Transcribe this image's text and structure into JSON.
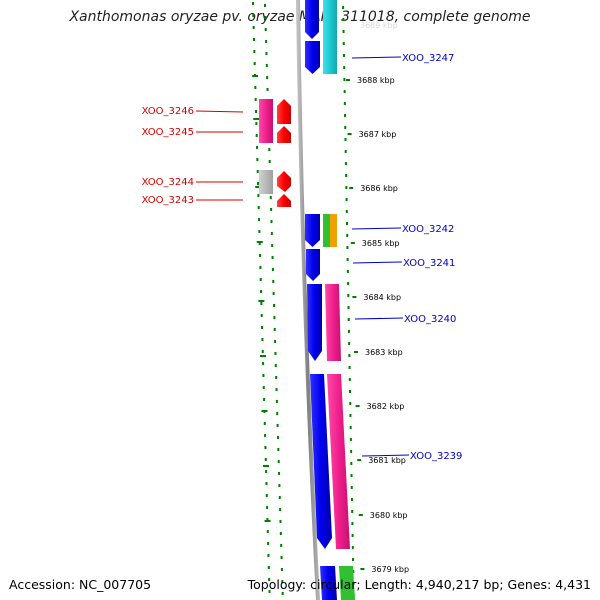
{
  "header": {
    "title": "Xanthomonas oryzae pv. oryzae MAFF 311018, complete genome"
  },
  "footer": {
    "accession": "Accession: NC_007705",
    "summary": "Topology: circular; Length: 4,940,217 bp; Genes: 4,431"
  },
  "scale": {
    "ticks": [
      {
        "label": "3688 kbp"
      },
      {
        "label": "3687 kbp"
      },
      {
        "label": "3686 kbp"
      },
      {
        "label": "3685 kbp"
      },
      {
        "label": "3684 kbp"
      },
      {
        "label": "3683 kbp"
      },
      {
        "label": "3682 kbp"
      },
      {
        "label": "3681 kbp"
      },
      {
        "label": "3680 kbp"
      },
      {
        "label": "3679 kbp"
      }
    ],
    "top_partial_label": "3689 kbp"
  },
  "genes": {
    "reverse": [
      "XOO_3246",
      "XOO_3245",
      "XOO_3244",
      "XOO_3243"
    ],
    "forward": [
      "XOO_3247",
      "XOO_3242",
      "XOO_3241",
      "XOO_3240",
      "XOO_3239"
    ]
  },
  "colors": {
    "reverse_label": "#d40000",
    "forward_label": "#0000c8",
    "blue_gene": "#0000ee",
    "red_gene": "#ff0000",
    "cyan_cog": "#20c8d0",
    "pink_cog": "#f0208c",
    "magenta_cog": "#e0207c",
    "grey_cog": "#b4b4b4",
    "green_cog": "#30c030",
    "orange_cog": "#f0a000",
    "backbone": "#909090",
    "gc_dots": "#008000"
  }
}
